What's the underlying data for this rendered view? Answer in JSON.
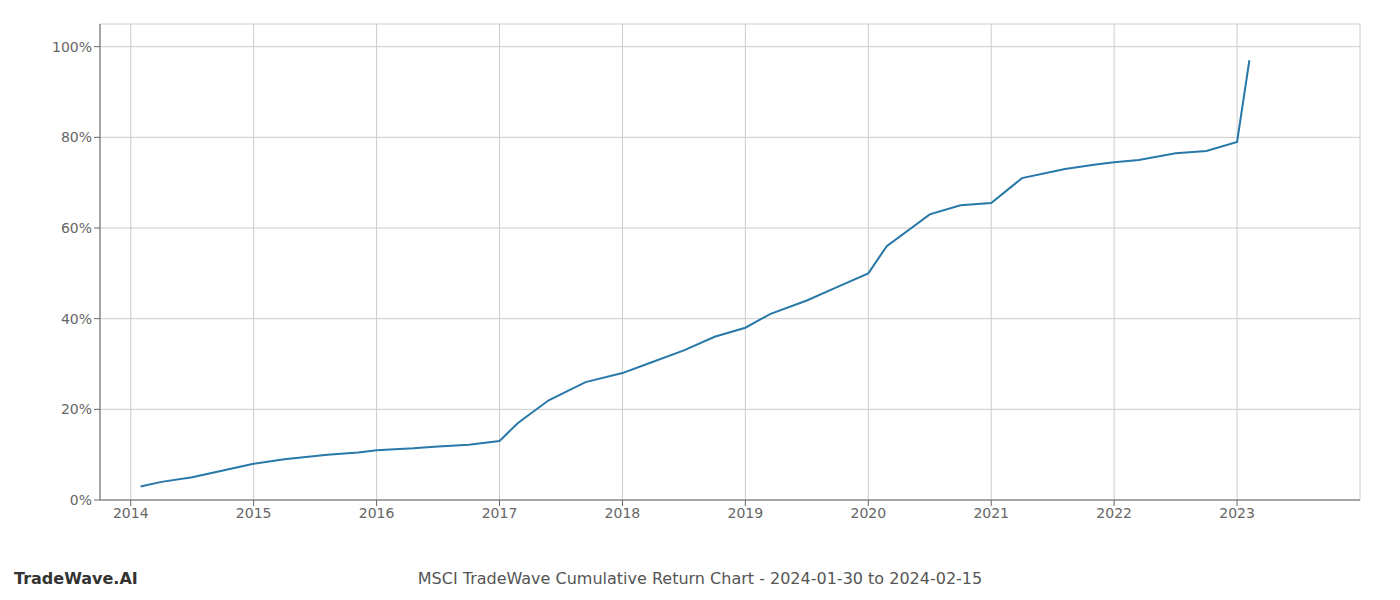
{
  "chart_data": {
    "type": "line",
    "title": "MSCI TradeWave Cumulative Return Chart - 2024-01-30 to 2024-02-15",
    "annotations": [
      "TradeWave.AI"
    ],
    "x": [
      2014.08,
      2014.25,
      2014.5,
      2014.75,
      2015.0,
      2015.25,
      2015.6,
      2015.85,
      2016.0,
      2016.15,
      2016.3,
      2016.5,
      2016.75,
      2017.0,
      2017.15,
      2017.4,
      2017.7,
      2018.0,
      2018.2,
      2018.5,
      2018.75,
      2019.0,
      2019.2,
      2019.5,
      2019.75,
      2020.0,
      2020.15,
      2020.5,
      2020.75,
      2021.0,
      2021.25,
      2021.6,
      2021.85,
      2022.0,
      2022.2,
      2022.5,
      2022.75,
      2023.0,
      2023.1
    ],
    "values": [
      3,
      4,
      5,
      6.5,
      8,
      9,
      10,
      10.5,
      11,
      11.2,
      11.4,
      11.8,
      12.2,
      13,
      17,
      22,
      26,
      28,
      30,
      33,
      36,
      38,
      41,
      44,
      47,
      50,
      56,
      63,
      65,
      65.5,
      71,
      73,
      74,
      74.5,
      75,
      76.5,
      77,
      79,
      97
    ],
    "color": "#2878a8",
    "xlim": [
      2013.75,
      2024.0
    ],
    "ylim": [
      0,
      105
    ],
    "xticks": [
      2014,
      2015,
      2016,
      2017,
      2018,
      2019,
      2020,
      2021,
      2022,
      2023
    ],
    "yticks": [
      {
        "value": 0,
        "label": "0%"
      },
      {
        "value": 20,
        "label": "20%"
      },
      {
        "value": 40,
        "label": "40%"
      },
      {
        "value": 60,
        "label": "60%"
      },
      {
        "value": 80,
        "label": "80%"
      },
      {
        "value": 100,
        "label": "100%"
      }
    ],
    "grid": true
  }
}
